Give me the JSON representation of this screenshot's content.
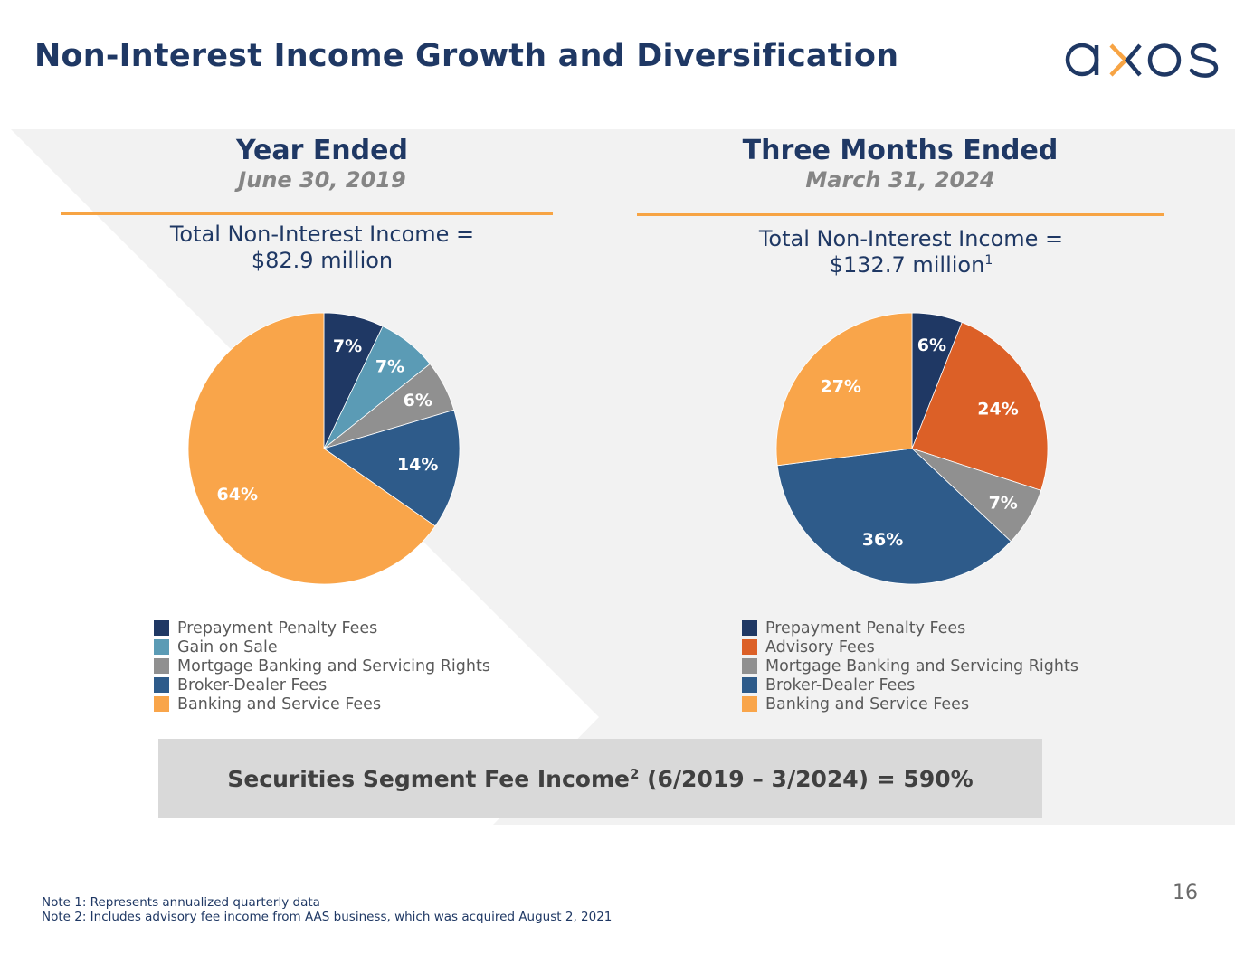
{
  "slide": {
    "title": "Non-Interest Income Growth and Diversification",
    "logo_text": "axos",
    "page_number": "16",
    "colors": {
      "navy": "#1f3864",
      "orange_rule": "#f7a444",
      "panel_bg": "#f2f2f2",
      "callout_bg": "#d9d9d9"
    }
  },
  "left_panel": {
    "heading": "Year Ended",
    "subheading": "June 30, 2019",
    "total_line1": "Total Non-Interest Income =",
    "total_line2": "$82.9 million",
    "total_sup": ""
  },
  "right_panel": {
    "heading": "Three Months Ended",
    "subheading": "March 31, 2024",
    "total_line1": "Total Non-Interest Income =",
    "total_line2": "$132.7 million",
    "total_sup": "1"
  },
  "callout": {
    "text_before_sup": "Securities Segment Fee Income",
    "sup": "2",
    "text_after_sup": " (6/2019 – 3/2024) = 590%"
  },
  "notes": [
    "Note 1: Represents annualized quarterly data",
    "Note 2: Includes advisory fee income from AAS business, which was acquired August 2, 2021"
  ],
  "chart_data": [
    {
      "type": "pie",
      "title": "Year Ended June 30, 2019",
      "subtitle": "Total Non-Interest Income = $82.9 million",
      "start_angle": "12 o'clock",
      "direction": "clockwise",
      "legend_position": "bottom",
      "slices": [
        {
          "label": "Prepayment Penalty Fees",
          "value": 7,
          "display": "7%",
          "color": "#1f3864"
        },
        {
          "label": "Gain on Sale",
          "value": 7,
          "display": "7%",
          "color": "#5b9bb5"
        },
        {
          "label": "Mortgage Banking and Servicing Rights",
          "value": 6,
          "display": "6%",
          "color": "#909090"
        },
        {
          "label": "Broker-Dealer Fees",
          "value": 14,
          "display": "14%",
          "color": "#2e5b8a"
        },
        {
          "label": "Banking and Service Fees",
          "value": 64,
          "display": "64%",
          "color": "#f9a54a"
        }
      ]
    },
    {
      "type": "pie",
      "title": "Three Months Ended March 31, 2024",
      "subtitle": "Total Non-Interest Income = $132.7 million",
      "start_angle": "12 o'clock",
      "direction": "clockwise",
      "legend_position": "bottom",
      "slices": [
        {
          "label": "Prepayment Penalty Fees",
          "value": 6,
          "display": "6%",
          "color": "#1f3864"
        },
        {
          "label": "Advisory Fees",
          "value": 24,
          "display": "24%",
          "color": "#dc6027"
        },
        {
          "label": "Mortgage Banking and Servicing Rights",
          "value": 7,
          "display": "7%",
          "color": "#909090"
        },
        {
          "label": "Broker-Dealer Fees",
          "value": 36,
          "display": "36%",
          "color": "#2e5b8a"
        },
        {
          "label": "Banking and Service Fees",
          "value": 27,
          "display": "27%",
          "color": "#f9a54a"
        }
      ]
    }
  ]
}
